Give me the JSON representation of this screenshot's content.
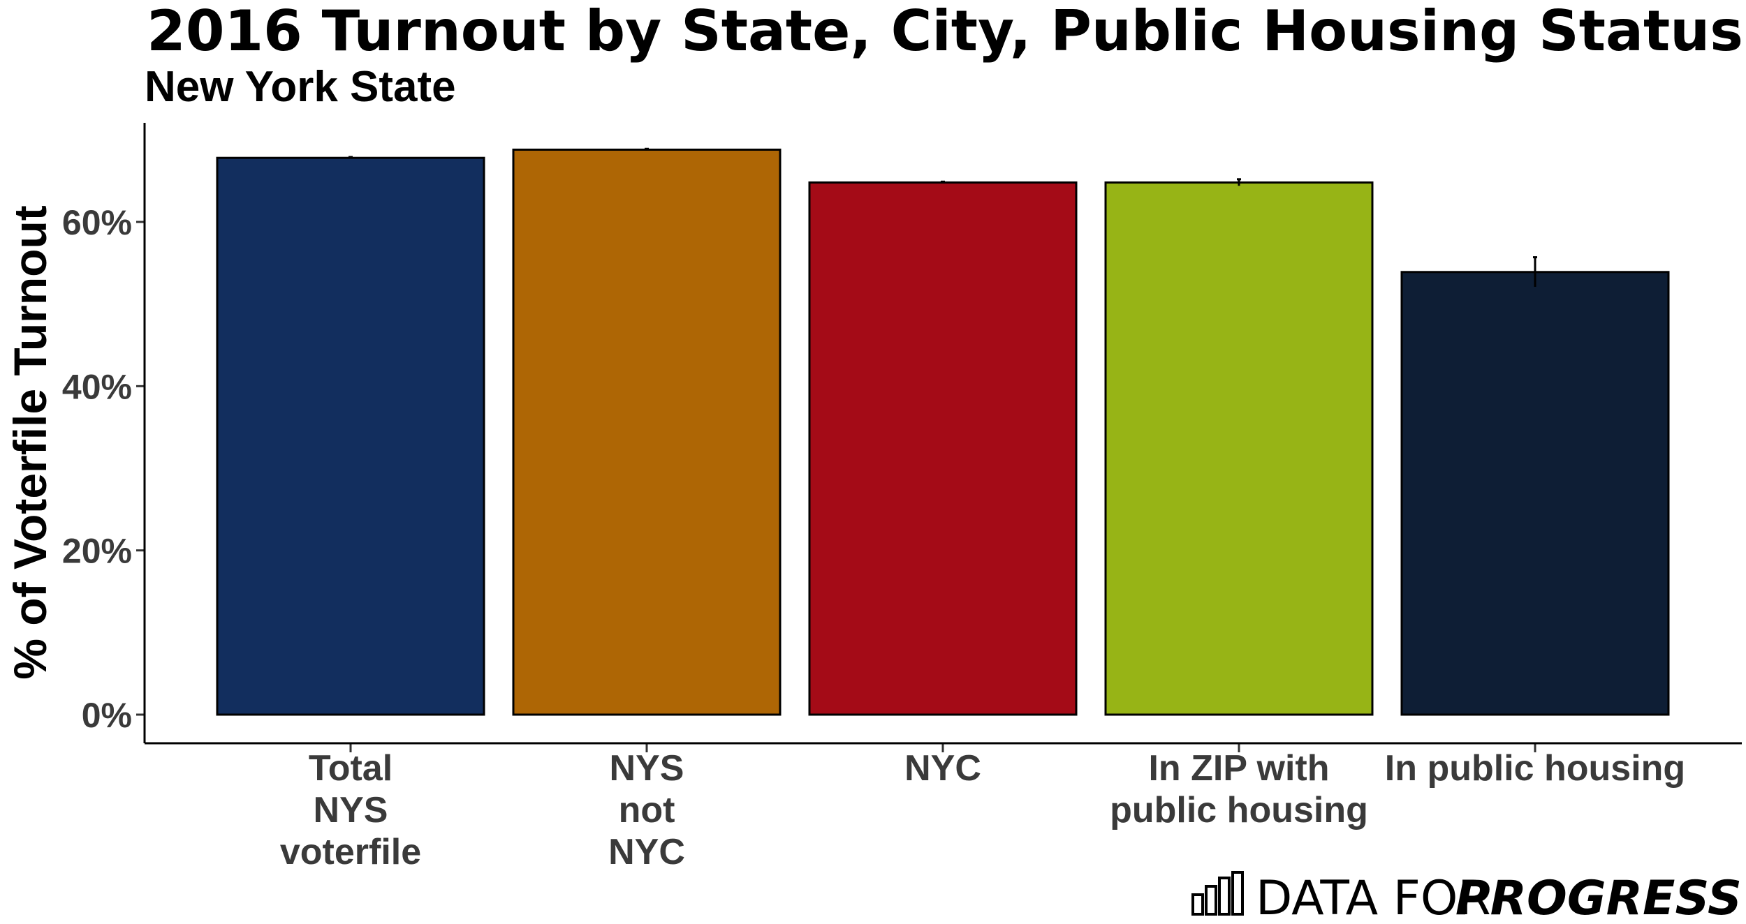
{
  "chart_data": {
    "type": "bar",
    "title": "2016 Turnout by State, City, Public Housing Status",
    "subtitle": "New York State",
    "xlabel": "",
    "ylabel": "% of Voterfile Turnout",
    "categories": [
      [
        "Total",
        "NYS",
        "voterfile"
      ],
      [
        "NYS",
        "not",
        "NYC"
      ],
      [
        "NYC"
      ],
      [
        "In ZIP with",
        "public housing"
      ],
      [
        "In public housing"
      ]
    ],
    "values": [
      67.8,
      68.8,
      64.8,
      64.8,
      53.9
    ],
    "error_bars": [
      [
        67.7,
        67.9
      ],
      [
        68.7,
        68.9
      ],
      [
        64.7,
        64.9
      ],
      [
        64.4,
        65.2
      ],
      [
        52.1,
        55.7
      ]
    ],
    "colors": [
      "#122e5e",
      "#ae6605",
      "#a40b17",
      "#97b416",
      "#0e1e35"
    ],
    "ylim": [
      0,
      72
    ],
    "yticks": [
      0,
      20,
      40,
      60
    ],
    "ytick_labels": [
      "0%",
      "20%",
      "40%",
      "60%"
    ],
    "grid": false,
    "legend": "none"
  },
  "brand": {
    "text_light": "DATA FOR",
    "text_bold": "PROGRESS",
    "icon": "bar-chart-icon"
  }
}
